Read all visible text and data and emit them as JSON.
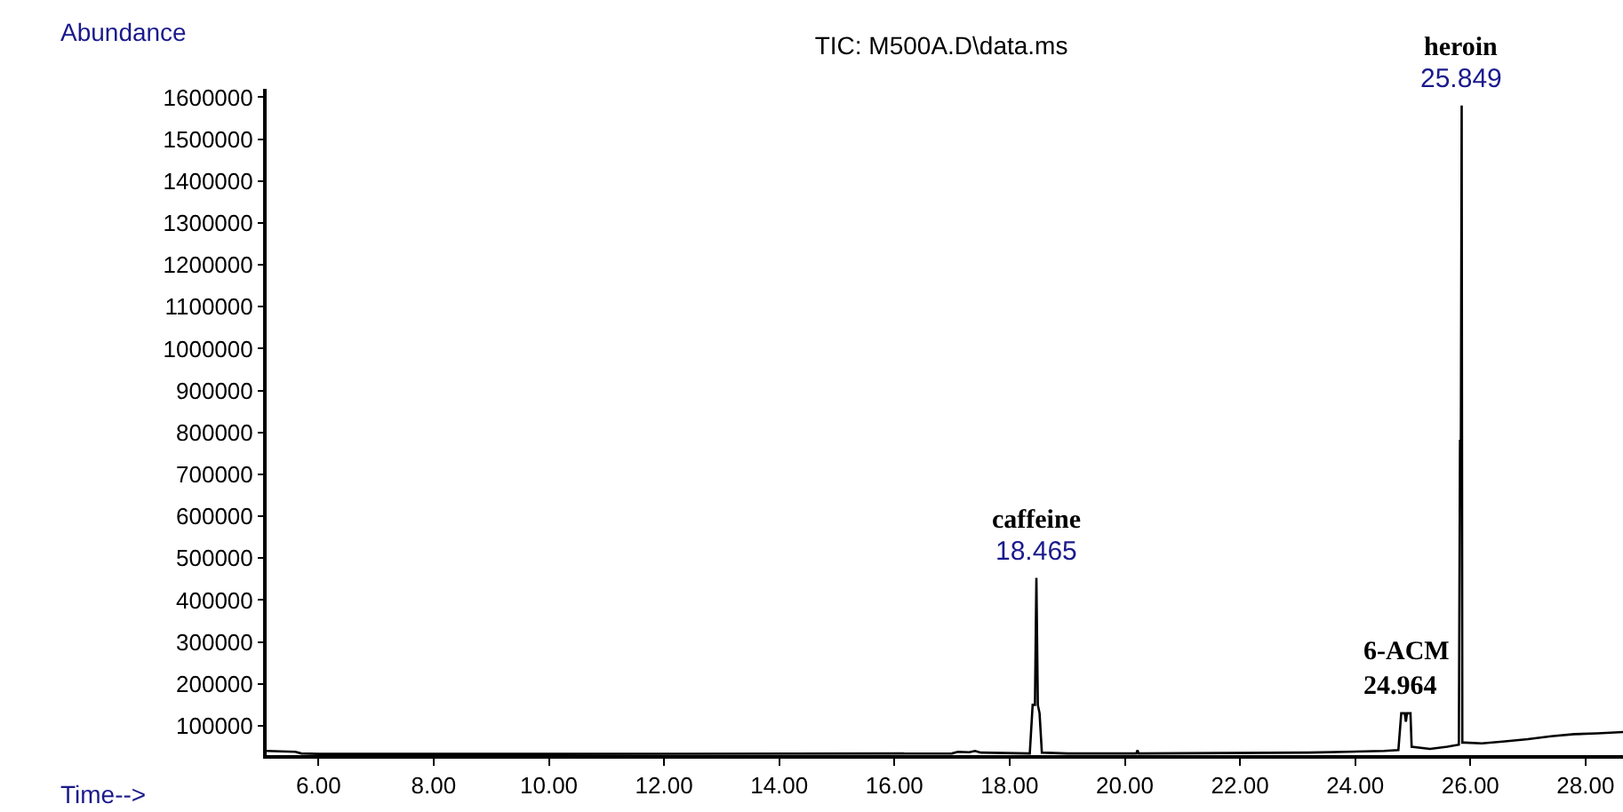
{
  "chart_data": {
    "type": "line",
    "title": "TIC: M500A.D\\data.ms",
    "xlabel": "Time-->",
    "ylabel": "Abundance",
    "x": [
      5.1,
      5.6,
      5.7,
      6.0,
      10.0,
      17.0,
      17.1,
      17.3,
      17.4,
      17.5,
      18.35,
      18.4,
      18.44,
      18.465,
      18.49,
      18.52,
      18.56,
      19.0,
      20.2,
      20.22,
      20.24,
      23.2,
      24.5,
      24.75,
      24.8,
      24.86,
      24.88,
      24.9,
      24.96,
      24.98,
      25.3,
      25.6,
      25.8,
      25.82,
      25.835,
      25.849,
      25.86,
      25.9,
      26.2,
      26.6,
      27.0,
      27.4,
      27.8,
      28.2,
      28.65
    ],
    "series": [
      {
        "color": "#000000",
        "values": [
          40000,
          38000,
          34000,
          33000,
          33000,
          34000,
          38000,
          37000,
          40000,
          36000,
          34000,
          150000,
          150000,
          453000,
          150000,
          130000,
          36000,
          34000,
          34000,
          42000,
          34000,
          36000,
          40000,
          42000,
          130000,
          130000,
          110000,
          130000,
          130000,
          50000,
          45000,
          50000,
          55000,
          780000,
          780000,
          1580000,
          60000,
          60000,
          58000,
          63000,
          68000,
          75000,
          80000,
          82000,
          85000
        ]
      }
    ],
    "xlim": [
      5.1,
      28.65
    ],
    "ylim": [
      30000,
      1620000
    ],
    "xticks": [
      {
        "value": 6,
        "label": "6.00"
      },
      {
        "value": 8,
        "label": "8.00"
      },
      {
        "value": 10,
        "label": "10.00"
      },
      {
        "value": 12,
        "label": "12.00"
      },
      {
        "value": 14,
        "label": "14.00"
      },
      {
        "value": 16,
        "label": "16.00"
      },
      {
        "value": 18,
        "label": "18.00"
      },
      {
        "value": 20,
        "label": "20.00"
      },
      {
        "value": 22,
        "label": "22.00"
      },
      {
        "value": 24,
        "label": "24.00"
      },
      {
        "value": 26,
        "label": "26.00"
      },
      {
        "value": 28,
        "label": "28.00"
      }
    ],
    "yticks": [
      100000,
      200000,
      300000,
      400000,
      500000,
      600000,
      700000,
      800000,
      900000,
      1000000,
      1100000,
      1200000,
      1300000,
      1400000,
      1500000,
      1600000
    ],
    "annotations": [
      {
        "text": "caffeine",
        "x": 18.465,
        "y": 453000
      },
      {
        "text": "18.465",
        "x": 18.465,
        "y": 453000
      },
      {
        "text": "6-ACM\n24.964",
        "x": 24.88,
        "y": 130000
      },
      {
        "text": "heroin",
        "x": 25.849,
        "y": 1580000
      },
      {
        "text": "25.849",
        "x": 25.849,
        "y": 1580000
      }
    ],
    "marker": "none",
    "line_style": "solid"
  }
}
